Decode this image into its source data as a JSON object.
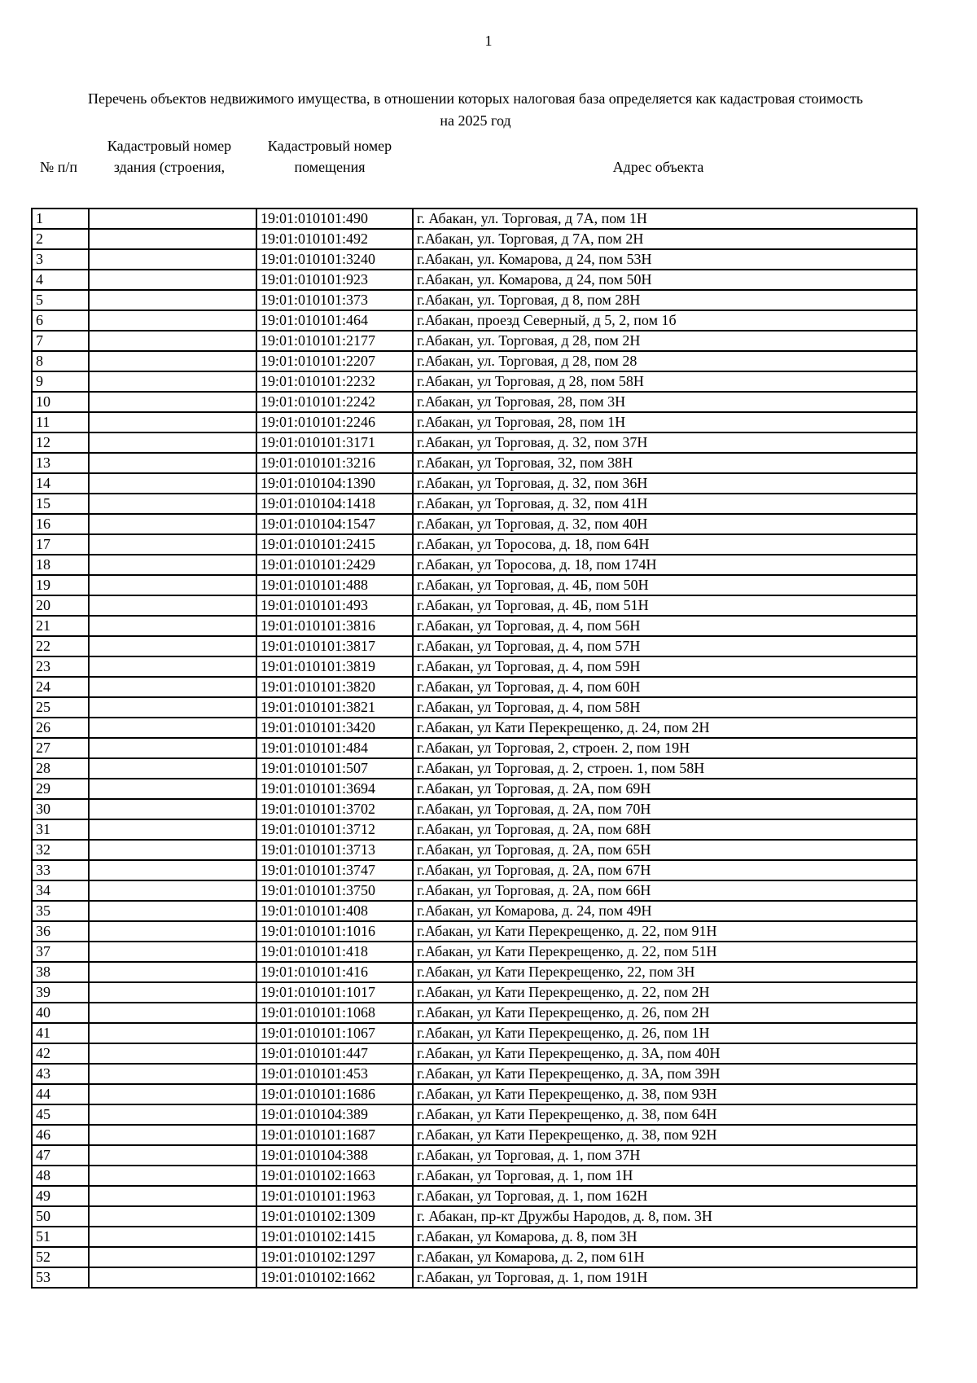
{
  "page": {
    "number": "1",
    "title_line1": "Перечень объектов недвижимого имущества, в отношении которых налоговая база определяется как кадастровая стоимость",
    "title_line2": "на 2025 год"
  },
  "table": {
    "headers": [
      {
        "line1": "",
        "line2": "№ п/п"
      },
      {
        "line1": "Кадастровый номер",
        "line2": "здания (строения,"
      },
      {
        "line1": "Кадастровый номер",
        "line2": "помещения"
      },
      {
        "line1": "",
        "line2": "Адрес объекта"
      }
    ],
    "rows": [
      {
        "num": "1",
        "building": "",
        "room": "19:01:010101:490",
        "address": "г. Абакан, ул. Торговая, д 7А, пом 1Н"
      },
      {
        "num": "2",
        "building": "",
        "room": "19:01:010101:492",
        "address": "г.Абакан, ул. Торговая, д 7А, пом 2Н"
      },
      {
        "num": "3",
        "building": "",
        "room": "19:01:010101:3240",
        "address": "г.Абакан, ул. Комарова, д 24, пом 53Н"
      },
      {
        "num": "4",
        "building": "",
        "room": "19:01:010101:923",
        "address": "г.Абакан, ул. Комарова, д 24, пом 50Н"
      },
      {
        "num": "5",
        "building": "",
        "room": "19:01:010101:373",
        "address": "г.Абакан, ул. Торговая, д 8, пом 28Н"
      },
      {
        "num": "6",
        "building": "",
        "room": "19:01:010101:464",
        "address": "г.Абакан, проезд Северный, д 5, 2, пом 1б"
      },
      {
        "num": "7",
        "building": "",
        "room": "19:01:010101:2177",
        "address": "г.Абакан, ул. Торговая, д 28, пом 2Н"
      },
      {
        "num": "8",
        "building": "",
        "room": "19:01:010101:2207",
        "address": "г.Абакан, ул. Торговая, д 28, пом 28"
      },
      {
        "num": "9",
        "building": "",
        "room": "19:01:010101:2232",
        "address": "г.Абакан, ул Торговая, д 28, пом 58Н"
      },
      {
        "num": "10",
        "building": "",
        "room": "19:01:010101:2242",
        "address": "г.Абакан, ул Торговая, 28, пом 3Н"
      },
      {
        "num": "11",
        "building": "",
        "room": "19:01:010101:2246",
        "address": "г.Абакан, ул Торговая, 28, пом 1Н"
      },
      {
        "num": "12",
        "building": "",
        "room": "19:01:010101:3171",
        "address": "г.Абакан, ул Торговая, д. 32, пом 37Н"
      },
      {
        "num": "13",
        "building": "",
        "room": "19:01:010101:3216",
        "address": "г.Абакан, ул Торговая, 32, пом 38Н"
      },
      {
        "num": "14",
        "building": "",
        "room": "19:01:010104:1390",
        "address": "г.Абакан, ул Торговая, д. 32, пом 36Н"
      },
      {
        "num": "15",
        "building": "",
        "room": "19:01:010104:1418",
        "address": "г.Абакан, ул Торговая, д. 32, пом 41Н"
      },
      {
        "num": "16",
        "building": "",
        "room": "19:01:010104:1547",
        "address": "г.Абакан, ул Торговая, д. 32, пом 40Н"
      },
      {
        "num": "17",
        "building": "",
        "room": "19:01:010101:2415",
        "address": "г.Абакан, ул Торосова, д. 18, пом 64Н"
      },
      {
        "num": "18",
        "building": "",
        "room": "19:01:010101:2429",
        "address": "г.Абакан, ул Торосова, д. 18, пом 174Н"
      },
      {
        "num": "19",
        "building": "",
        "room": "19:01:010101:488",
        "address": "г.Абакан, ул Торговая, д. 4Б, пом 50Н"
      },
      {
        "num": "20",
        "building": "",
        "room": "19:01:010101:493",
        "address": "г.Абакан, ул Торговая, д. 4Б, пом 51Н"
      },
      {
        "num": "21",
        "building": "",
        "room": "19:01:010101:3816",
        "address": "г.Абакан, ул Торговая, д. 4, пом 56Н"
      },
      {
        "num": "22",
        "building": "",
        "room": "19:01:010101:3817",
        "address": "г.Абакан, ул Торговая, д. 4, пом 57Н"
      },
      {
        "num": "23",
        "building": "",
        "room": "19:01:010101:3819",
        "address": "г.Абакан, ул Торговая, д. 4, пом 59Н"
      },
      {
        "num": "24",
        "building": "",
        "room": "19:01:010101:3820",
        "address": "г.Абакан, ул Торговая, д. 4, пом 60Н"
      },
      {
        "num": "25",
        "building": "",
        "room": "19:01:010101:3821",
        "address": "г.Абакан, ул Торговая, д. 4, пом 58Н"
      },
      {
        "num": "26",
        "building": "",
        "room": "19:01:010101:3420",
        "address": "г.Абакан, ул Кати Перекрещенко, д. 24, пом 2Н"
      },
      {
        "num": "27",
        "building": "",
        "room": "19:01:010101:484",
        "address": "г.Абакан, ул Торговая, 2, строен. 2, пом 19Н"
      },
      {
        "num": "28",
        "building": "",
        "room": "19:01:010101:507",
        "address": "г.Абакан, ул Торговая, д. 2, строен. 1, пом 58Н"
      },
      {
        "num": "29",
        "building": "",
        "room": "19:01:010101:3694",
        "address": "г.Абакан, ул Торговая, д. 2А, пом 69Н"
      },
      {
        "num": "30",
        "building": "",
        "room": "19:01:010101:3702",
        "address": "г.Абакан, ул Торговая, д. 2А, пом 70Н"
      },
      {
        "num": "31",
        "building": "",
        "room": "19:01:010101:3712",
        "address": "г.Абакан, ул Торговая, д. 2А, пом 68Н"
      },
      {
        "num": "32",
        "building": "",
        "room": "19:01:010101:3713",
        "address": "г.Абакан, ул Торговая, д. 2А, пом 65Н"
      },
      {
        "num": "33",
        "building": "",
        "room": "19:01:010101:3747",
        "address": "г.Абакан, ул Торговая, д. 2А, пом 67Н"
      },
      {
        "num": "34",
        "building": "",
        "room": "19:01:010101:3750",
        "address": "г.Абакан, ул Торговая, д. 2А, пом 66Н"
      },
      {
        "num": "35",
        "building": "",
        "room": "19:01:010101:408",
        "address": "г.Абакан, ул Комарова, д. 24, пом 49Н"
      },
      {
        "num": "36",
        "building": "",
        "room": "19:01:010101:1016",
        "address": "г.Абакан, ул Кати Перекрещенко, д. 22, пом 91Н"
      },
      {
        "num": "37",
        "building": "",
        "room": "19:01:010101:418",
        "address": "г.Абакан, ул Кати Перекрещенко, д. 22, пом 51Н"
      },
      {
        "num": "38",
        "building": "",
        "room": "19:01:010101:416",
        "address": "г.Абакан, ул Кати Перекрещенко, 22, пом 3Н"
      },
      {
        "num": "39",
        "building": "",
        "room": "19:01:010101:1017",
        "address": "г.Абакан, ул Кати Перекрещенко, д. 22, пом 2Н"
      },
      {
        "num": "40",
        "building": "",
        "room": "19:01:010101:1068",
        "address": "г.Абакан, ул Кати Перекрещенко, д. 26, пом 2Н"
      },
      {
        "num": "41",
        "building": "",
        "room": "19:01:010101:1067",
        "address": "г.Абакан, ул Кати Перекрещенко, д. 26, пом 1Н"
      },
      {
        "num": "42",
        "building": "",
        "room": "19:01:010101:447",
        "address": "г.Абакан, ул Кати Перекрещенко, д. 3А, пом 40Н"
      },
      {
        "num": "43",
        "building": "",
        "room": "19:01:010101:453",
        "address": "г.Абакан, ул Кати Перекрещенко, д. 3А, пом 39Н"
      },
      {
        "num": "44",
        "building": "",
        "room": "19:01:010101:1686",
        "address": "г.Абакан, ул Кати Перекрещенко, д. 38, пом 93Н"
      },
      {
        "num": "45",
        "building": "",
        "room": "19:01:010104:389",
        "address": "г.Абакан, ул Кати Перекрещенко, д. 38, пом 64Н"
      },
      {
        "num": "46",
        "building": "",
        "room": "19:01:010101:1687",
        "address": "г.Абакан, ул Кати Перекрещенко, д. 38, пом 92Н"
      },
      {
        "num": "47",
        "building": "",
        "room": "19:01:010104:388",
        "address": "г.Абакан, ул Торговая, д. 1, пом 37Н"
      },
      {
        "num": "48",
        "building": "",
        "room": "19:01:010102:1663",
        "address": "г.Абакан, ул Торговая, д. 1, пом 1Н"
      },
      {
        "num": "49",
        "building": "",
        "room": "19:01:010101:1963",
        "address": "г.Абакан, ул Торговая, д. 1, пом 162Н"
      },
      {
        "num": "50",
        "building": "",
        "room": "19:01:010102:1309",
        "address": "г. Абакан, пр-кт Дружбы Народов, д. 8, пом. 3Н"
      },
      {
        "num": "51",
        "building": "",
        "room": "19:01:010102:1415",
        "address": "г.Абакан, ул Комарова, д. 8, пом 3Н"
      },
      {
        "num": "52",
        "building": "",
        "room": "19:01:010102:1297",
        "address": "г.Абакан, ул Комарова, д. 2, пом 61Н"
      },
      {
        "num": "53",
        "building": "",
        "room": "19:01:010102:1662",
        "address": "г.Абакан, ул Торговая, д. 1, пом 191Н"
      }
    ]
  }
}
